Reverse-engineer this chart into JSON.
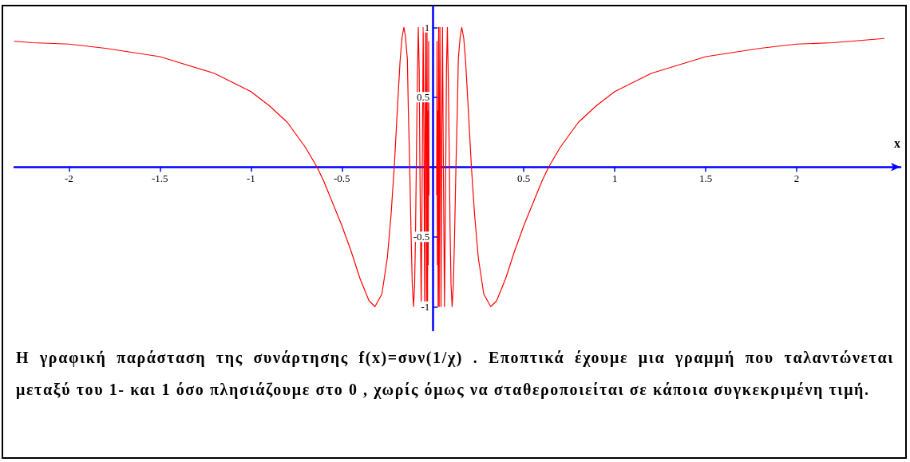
{
  "chart_data": {
    "type": "line",
    "xlabel": "x",
    "annotations": [
      "Η γραφική παράσταση της συνάρτησης f(x)=συν(1/χ) . Εποπτικά έχουμε μια γραμμή που ταλαντώνεται μεταξύ του 1- και 1 όσο πλησιάζουμε στο 0 , χωρίς όμως να σταθεροποιείται σε κάποια συγκεκριμένη τιμή."
    ],
    "xlim": [
      -2.3,
      2.57
    ],
    "ylim": [
      -1.17,
      1.15
    ],
    "xticks": [
      -2,
      -1.5,
      -1,
      -0.5,
      0.5,
      1,
      1.5,
      2
    ],
    "yticks": [
      -1,
      -0.5,
      0.5,
      1
    ],
    "grid": false,
    "marker": "none",
    "line_style": "solid",
    "series": [
      {
        "color": "#ff0000",
        "x": [
          -2.3,
          -2.2,
          -2,
          -1.8,
          -1.5,
          -1.2,
          -1,
          -0.9,
          -0.8,
          -0.7,
          -0.637,
          -0.6,
          -0.5,
          -0.45,
          -0.4,
          -0.35,
          -0.318,
          -0.28,
          -0.25,
          -0.23,
          -0.212,
          -0.195,
          -0.18,
          -0.17,
          -0.159,
          -0.15,
          -0.14,
          -0.135,
          -0.127,
          -0.12,
          -0.113,
          -0.106,
          -0.1,
          -0.095,
          -0.091,
          -0.085,
          -0.08,
          -0.075,
          -0.071,
          -0.064,
          -0.058,
          -0.053,
          -0.049,
          -0.045,
          -0.042,
          -0.039,
          -0.037,
          -0.035,
          -0.033,
          -0.032,
          -0.03,
          -0.029,
          -0.027,
          -0.025,
          -0.023,
          -0.021,
          null,
          0.021,
          0.023,
          0.025,
          0.027,
          0.029,
          0.03,
          0.032,
          0.033,
          0.035,
          0.037,
          0.039,
          0.042,
          0.045,
          0.049,
          0.053,
          0.058,
          0.064,
          0.071,
          0.075,
          0.08,
          0.085,
          0.091,
          0.095,
          0.1,
          0.106,
          0.113,
          0.12,
          0.127,
          0.135,
          0.14,
          0.15,
          0.159,
          0.17,
          0.18,
          0.195,
          0.212,
          0.23,
          0.25,
          0.28,
          0.318,
          0.35,
          0.4,
          0.45,
          0.5,
          0.6,
          0.637,
          0.7,
          0.8,
          0.9,
          1,
          1.2,
          1.5,
          1.8,
          2,
          2.2,
          2.48
        ],
        "values": [
          0.9,
          0.89,
          0.88,
          0.85,
          0.79,
          0.67,
          0.54,
          0.44,
          0.32,
          0.14,
          0,
          -0.1,
          -0.42,
          -0.6,
          -0.8,
          -0.96,
          -1,
          -0.91,
          -0.65,
          -0.35,
          0,
          0.41,
          0.76,
          0.92,
          1,
          0.93,
          0.77,
          0.43,
          0,
          -0.46,
          -0.84,
          -1,
          -0.84,
          -0.47,
          0,
          0.63,
          1,
          0.7,
          0,
          -1,
          0,
          1,
          0.2,
          -1,
          0.3,
          1,
          0.2,
          -1,
          -0.3,
          1,
          0.1,
          -1,
          0.4,
          -0.7,
          0.9,
          -0.2,
          null,
          -0.2,
          0.9,
          -0.7,
          0.4,
          -1,
          0.1,
          1,
          -0.3,
          -1,
          0.2,
          1,
          0.3,
          -1,
          0.2,
          1,
          0,
          -1,
          0,
          0.7,
          1,
          0.63,
          0,
          -0.47,
          -0.84,
          -1,
          -0.84,
          -0.46,
          0,
          0.43,
          0.77,
          0.93,
          1,
          0.92,
          0.76,
          0.41,
          0,
          -0.35,
          -0.65,
          -0.91,
          -1,
          -0.96,
          -0.8,
          -0.6,
          -0.42,
          -0.1,
          0,
          0.14,
          0.32,
          0.44,
          0.54,
          0.67,
          0.79,
          0.85,
          0.88,
          0.89,
          0.92
        ]
      }
    ]
  }
}
